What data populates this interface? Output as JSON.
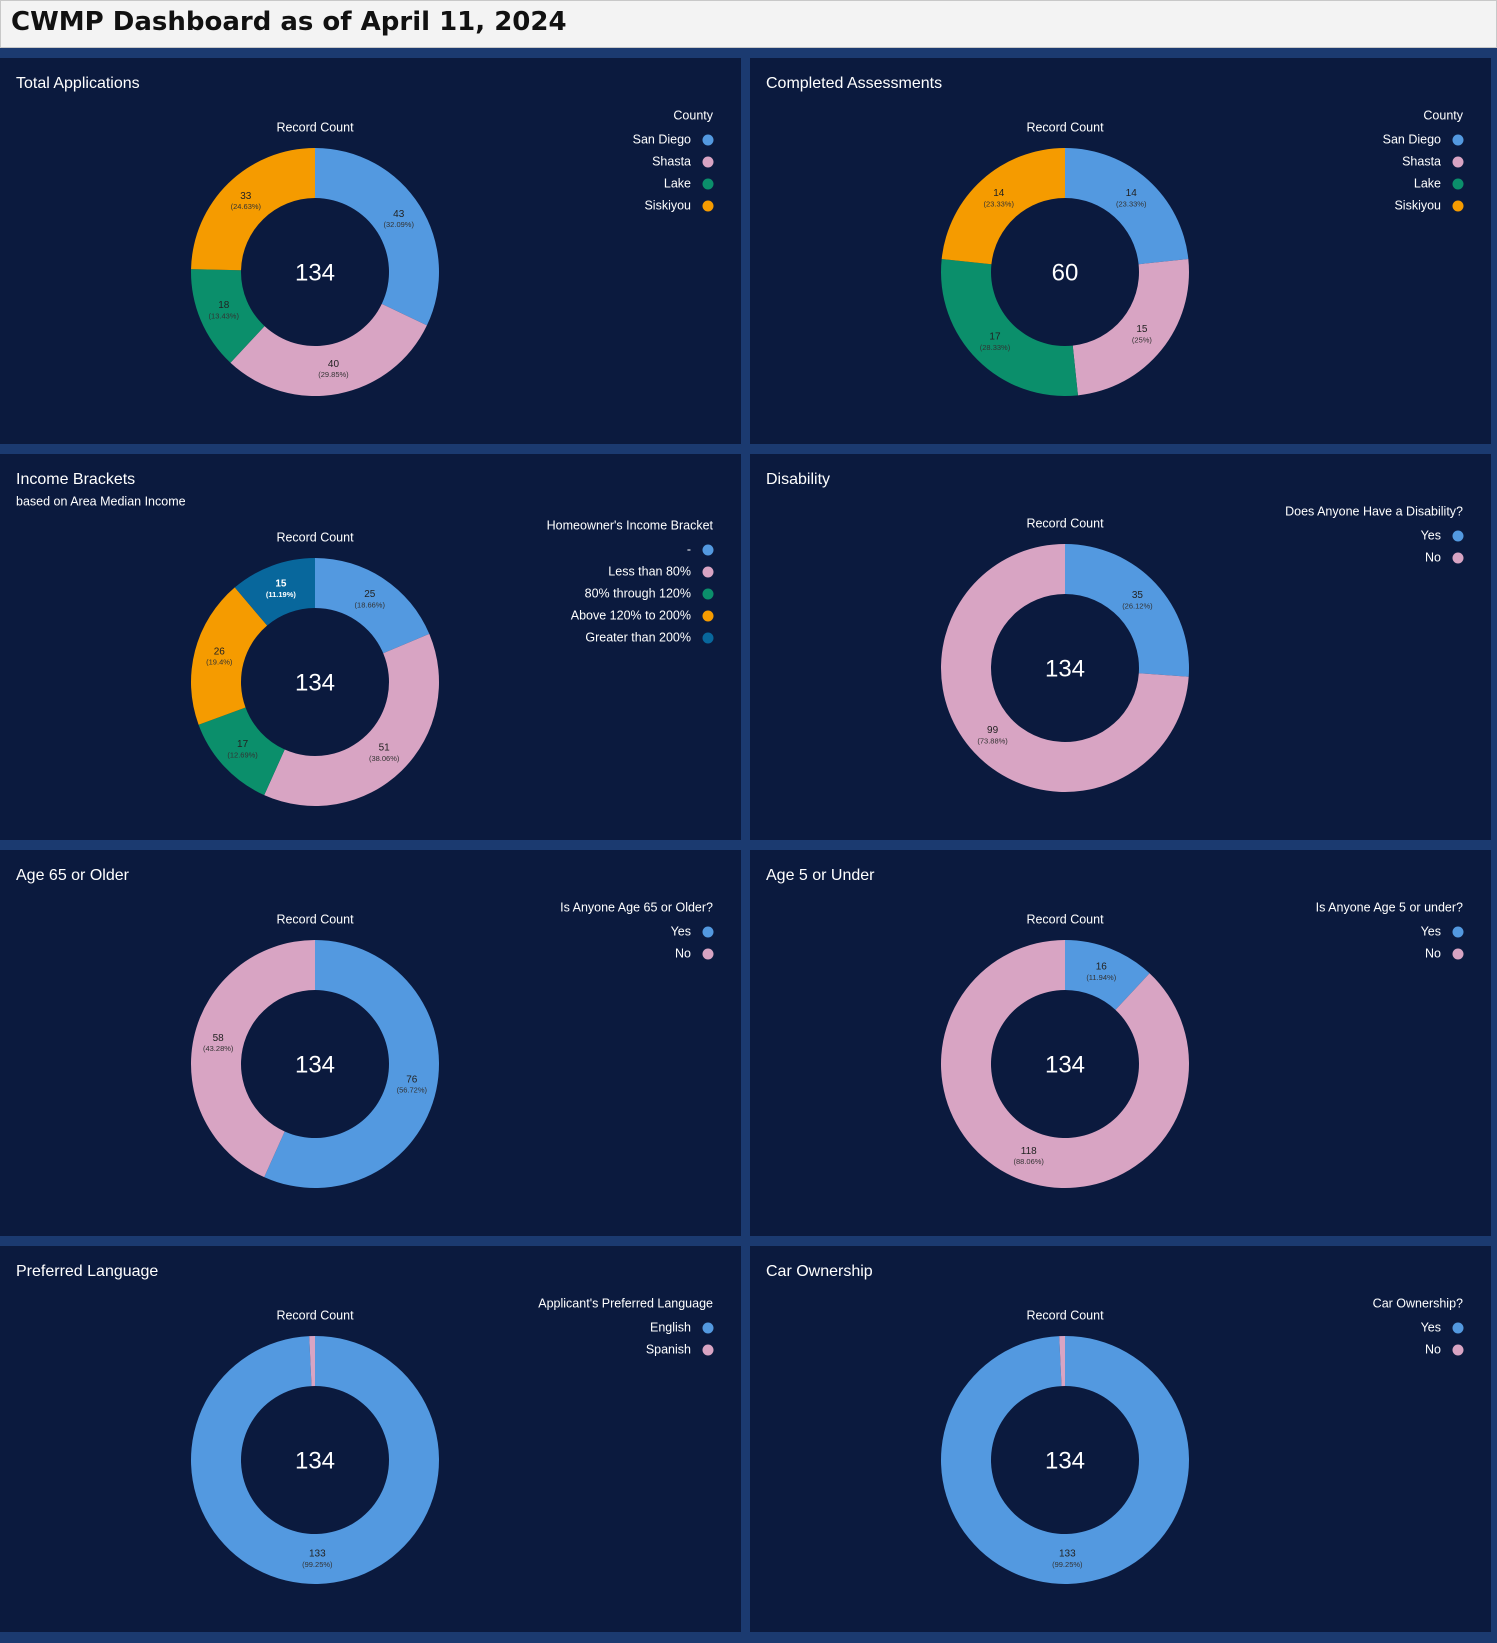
{
  "header": {
    "title": "CWMP Dashboard as of April 11, 2024"
  },
  "chart_data": [
    {
      "type": "donut",
      "title": "Total Applications",
      "measure": "Record Count",
      "total": 134,
      "legend_title": "County",
      "categories": [
        "San Diego",
        "Shasta",
        "Lake",
        "Siskiyou"
      ],
      "values": [
        43,
        40,
        18,
        33
      ],
      "percent_labels": [
        "(32.09%)",
        "(29.85%)",
        "(13.43%)",
        "(24.63%)"
      ],
      "colors": [
        "#5399e0",
        "#d8a4c3",
        "#0b8f6b",
        "#f59b00"
      ]
    },
    {
      "type": "donut",
      "title": "Completed Assessments",
      "measure": "Record Count",
      "total": 60,
      "legend_title": "County",
      "categories": [
        "San Diego",
        "Shasta",
        "Lake",
        "Siskiyou"
      ],
      "values": [
        14,
        15,
        17,
        14
      ],
      "percent_labels": [
        "(23.33%)",
        "(25%)",
        "(28.33%)",
        "(23.33%)"
      ],
      "colors": [
        "#5399e0",
        "#d8a4c3",
        "#0b8f6b",
        "#f59b00"
      ]
    },
    {
      "type": "donut",
      "title": "Income Brackets",
      "subtitle": "based on Area Median Income",
      "measure": "Record Count",
      "total": 134,
      "legend_title": "Homeowner's Income Bracket",
      "categories": [
        "-",
        "Less than 80%",
        "80% through 120%",
        "Above 120% to 200%",
        "Greater than 200%"
      ],
      "values": [
        25,
        51,
        17,
        26,
        15
      ],
      "percent_labels": [
        "(18.66%)",
        "(38.06%)",
        "(12.69%)",
        "(19.4%)",
        "(11.19%)"
      ],
      "colors": [
        "#5399e0",
        "#d8a4c3",
        "#0b8f6b",
        "#f59b00",
        "#08679c"
      ]
    },
    {
      "type": "donut",
      "title": "Disability",
      "measure": "Record Count",
      "total": 134,
      "legend_title": "Does Anyone Have a Disability?",
      "categories": [
        "Yes",
        "No"
      ],
      "values": [
        35,
        99
      ],
      "percent_labels": [
        "(26.12%)",
        "(73.88%)"
      ],
      "colors": [
        "#5399e0",
        "#d8a4c3"
      ]
    },
    {
      "type": "donut",
      "title": "Age 65 or Older",
      "measure": "Record Count",
      "total": 134,
      "legend_title": "Is Anyone Age 65 or Older?",
      "categories": [
        "Yes",
        "No"
      ],
      "values": [
        76,
        58
      ],
      "percent_labels": [
        "(56.72%)",
        "(43.28%)"
      ],
      "colors": [
        "#5399e0",
        "#d8a4c3"
      ]
    },
    {
      "type": "donut",
      "title": "Age 5 or Under",
      "measure": "Record Count",
      "total": 134,
      "legend_title": "Is Anyone Age 5 or under?",
      "categories": [
        "Yes",
        "No"
      ],
      "values": [
        16,
        118
      ],
      "percent_labels": [
        "(11.94%)",
        "(88.06%)"
      ],
      "colors": [
        "#5399e0",
        "#d8a4c3"
      ]
    },
    {
      "type": "donut",
      "title": "Preferred Language",
      "measure": "Record Count",
      "total": 134,
      "legend_title": "Applicant's Preferred Language",
      "categories": [
        "English",
        "Spanish"
      ],
      "values": [
        133,
        1
      ],
      "percent_labels": [
        "(99.25%)",
        null
      ],
      "colors": [
        "#5399e0",
        "#d8a4c3"
      ]
    },
    {
      "type": "donut",
      "title": "Car Ownership",
      "measure": "Record Count",
      "total": 134,
      "legend_title": "Car Ownership?",
      "categories": [
        "Yes",
        "No"
      ],
      "values": [
        133,
        1
      ],
      "percent_labels": [
        "(99.25%)",
        null
      ],
      "colors": [
        "#5399e0",
        "#d8a4c3"
      ]
    }
  ]
}
